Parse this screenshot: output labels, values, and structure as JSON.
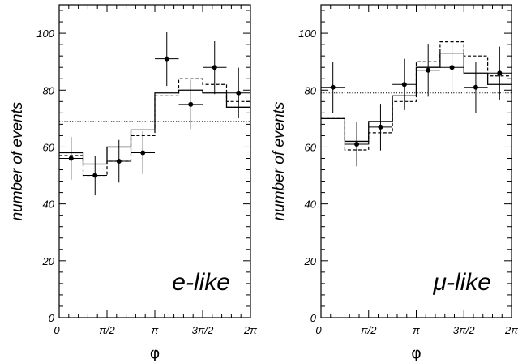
{
  "chart_data": [
    {
      "type": "line",
      "panel_label": "e-like",
      "xlabel": "φ",
      "ylabel": "number of events",
      "xlim": [
        0,
        6.2832
      ],
      "ylim": [
        0,
        110
      ],
      "yticks": [
        0,
        20,
        40,
        60,
        80,
        100
      ],
      "xtick_labels": [
        "0",
        "π/2",
        "π",
        "3π/2",
        "2π"
      ],
      "bin_edges_fraction_of_2pi": [
        0,
        0.125,
        0.25,
        0.375,
        0.5,
        0.625,
        0.75,
        0.875,
        1.0
      ],
      "data_points": {
        "y": [
          56,
          50,
          55,
          58,
          91,
          75,
          88,
          79
        ],
        "yerr": [
          7.5,
          7,
          7.5,
          7.5,
          9.5,
          8.7,
          9.4,
          8.9
        ]
      },
      "solid_histogram": [
        58,
        54,
        60,
        66,
        79,
        80,
        79,
        74
      ],
      "dashed_histogram": [
        57,
        50,
        55,
        64,
        78,
        84,
        82,
        76
      ],
      "dotted_flat_line": 69
    },
    {
      "type": "line",
      "panel_label": "μ-like",
      "xlabel": "φ",
      "ylabel": "number of events",
      "xlim": [
        0,
        6.2832
      ],
      "ylim": [
        0,
        110
      ],
      "yticks": [
        0,
        20,
        40,
        60,
        80,
        100
      ],
      "xtick_labels": [
        "0",
        "π/2",
        "π",
        "3π/2",
        "2π"
      ],
      "bin_edges_fraction_of_2pi": [
        0,
        0.125,
        0.25,
        0.375,
        0.5,
        0.625,
        0.75,
        0.875,
        1.0
      ],
      "data_points": {
        "y": [
          81,
          61,
          67,
          82,
          87,
          88,
          81,
          86
        ],
        "yerr": [
          9,
          7.8,
          8.2,
          9,
          9.3,
          9.4,
          9,
          9.3
        ]
      },
      "solid_histogram": [
        70,
        62,
        69,
        78,
        88,
        93,
        86,
        82
      ],
      "dashed_histogram": [
        70,
        59,
        65,
        76,
        90,
        97,
        92,
        85
      ],
      "dotted_flat_line": 79
    }
  ]
}
